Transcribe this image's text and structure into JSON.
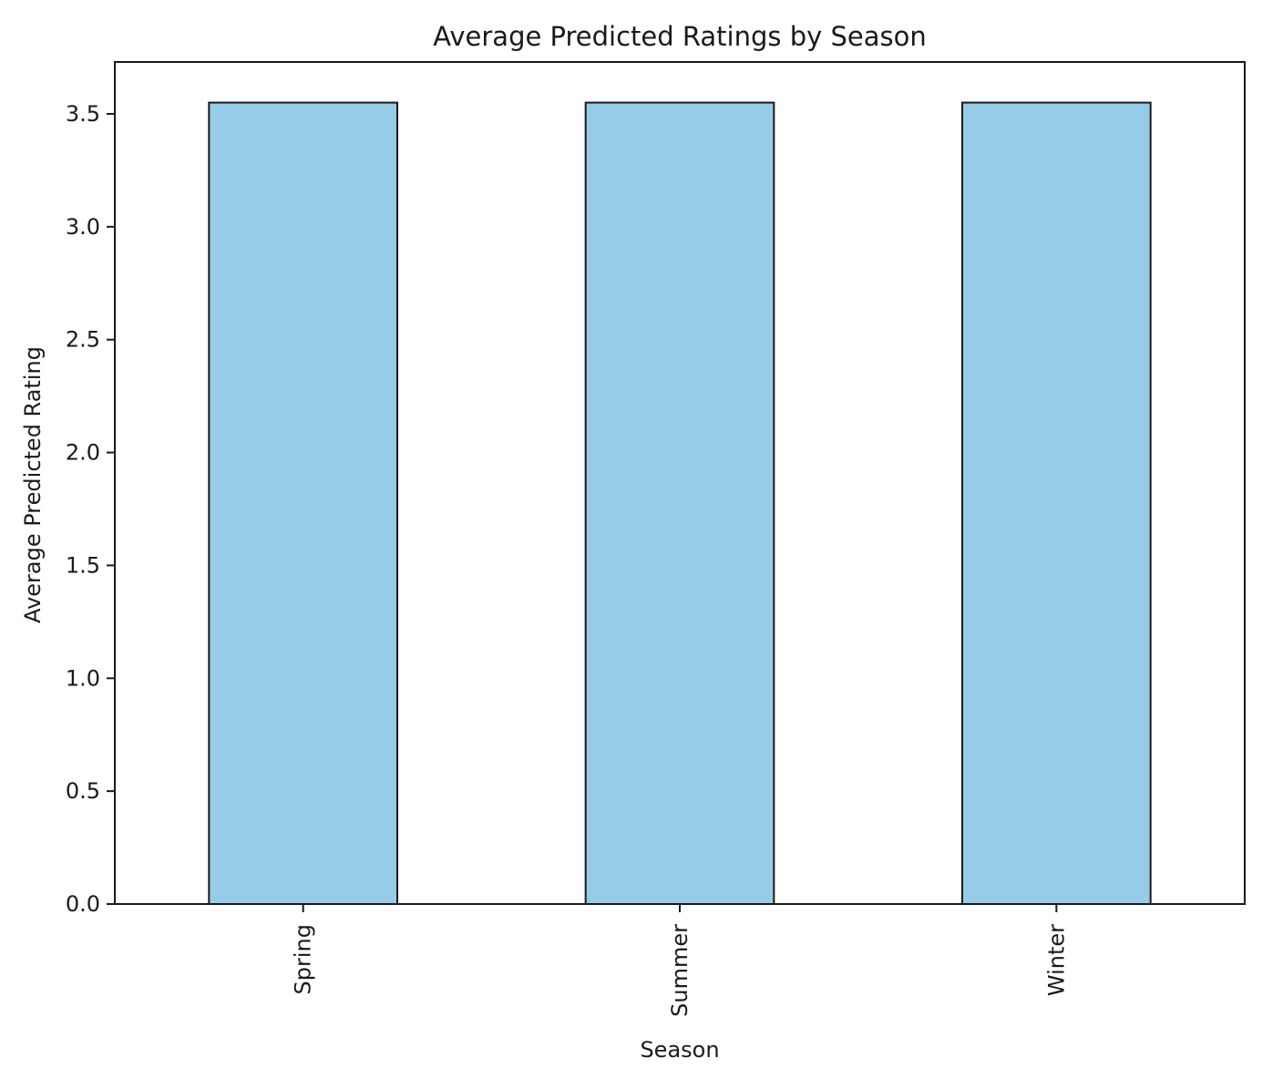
{
  "chart_data": {
    "type": "bar",
    "title": "Average Predicted Ratings by Season",
    "xlabel": "Season",
    "ylabel": "Average Predicted Rating",
    "categories": [
      "Spring",
      "Summer",
      "Winter"
    ],
    "values": [
      3.55,
      3.55,
      3.55
    ],
    "ylim": [
      0,
      3.73
    ],
    "yticks": [
      "0.0",
      "0.5",
      "1.0",
      "1.5",
      "2.0",
      "2.5",
      "3.0",
      "3.5"
    ],
    "x_tick_rotation": "vertical",
    "bar_color": "#97cce8",
    "edge_color": "#1a1a1a",
    "grid": false,
    "legend": "none"
  }
}
